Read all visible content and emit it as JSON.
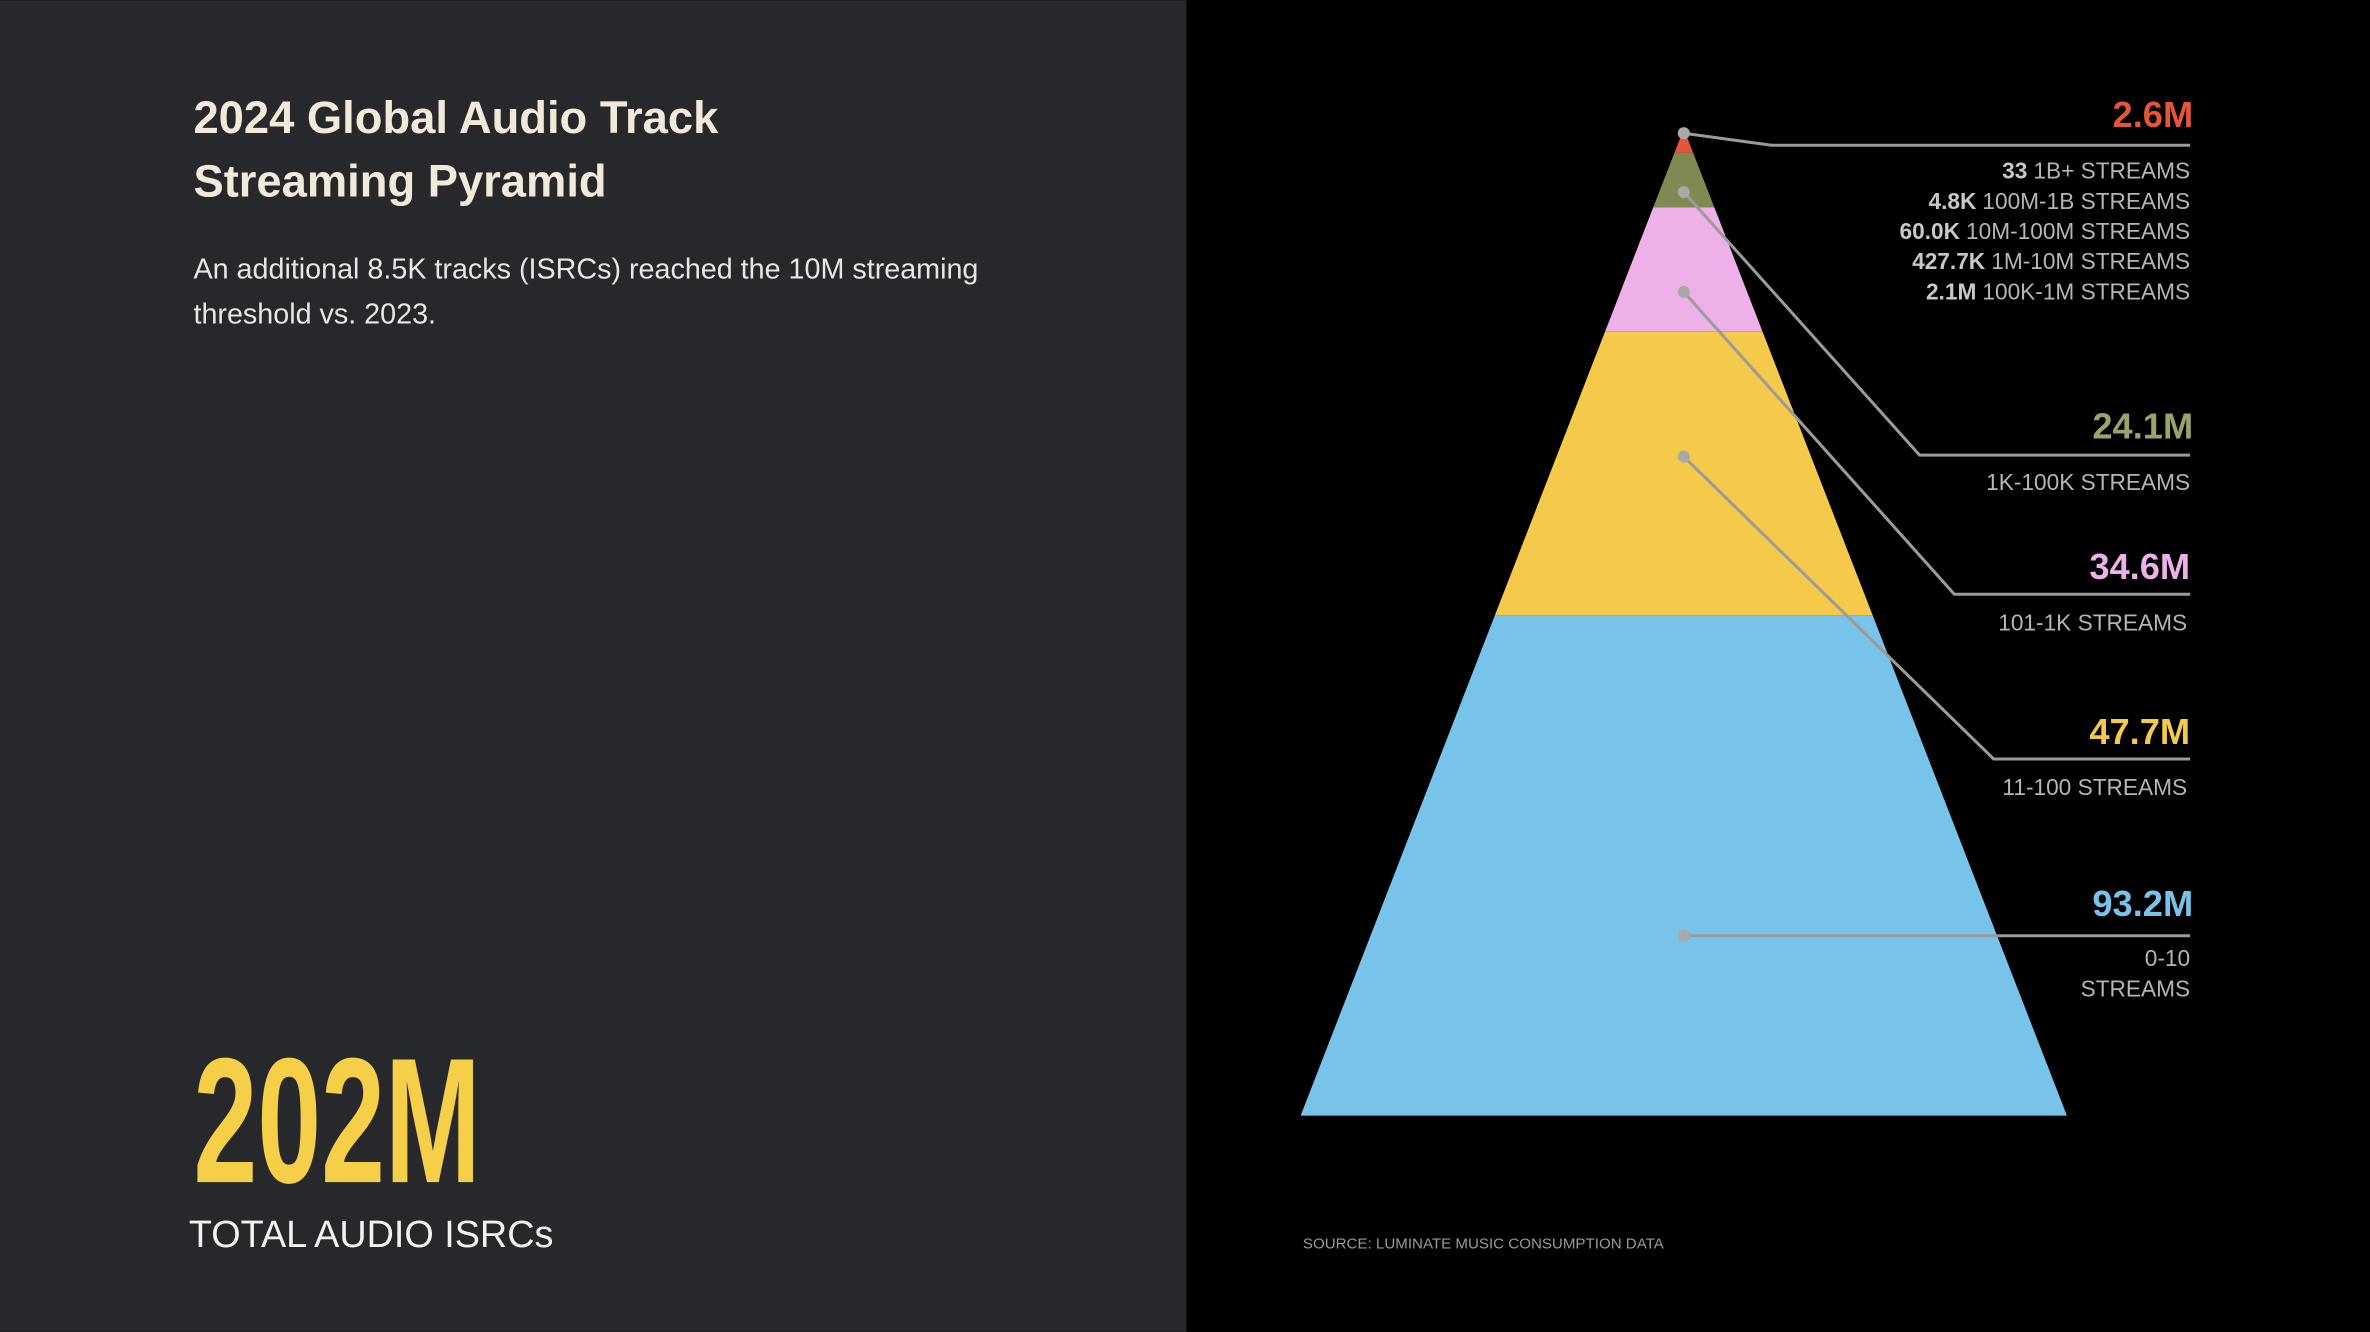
{
  "header": {
    "title": [
      "2024 Global Audio Track",
      "Streaming Pyramid"
    ],
    "subtitle": [
      "An additional 8.5K tracks (ISRCs) reached the 10M streaming",
      "threshold vs. 2023."
    ]
  },
  "total": {
    "value": "202M",
    "label": "TOTAL AUDIO ISRCs"
  },
  "tiers": [
    {
      "value": "2.6M"
    },
    {
      "value": "24.1M",
      "label": "1K-100K STREAMS"
    },
    {
      "value": "34.6M",
      "label": "101-1K STREAMS"
    },
    {
      "value": "47.7M",
      "label": "11-100 STREAMS"
    },
    {
      "value": "93.2M",
      "label": [
        "0-10",
        "STREAMS"
      ]
    }
  ],
  "top_breakdown": [
    {
      "count": "33",
      "label": "1B+ STREAMS"
    },
    {
      "count": "4.8K",
      "label": "100M-1B STREAMS"
    },
    {
      "count": "60.0K",
      "label": "10M-100M STREAMS"
    },
    {
      "count": "427.7K",
      "label": "1M-10M STREAMS"
    },
    {
      "count": "2.1M",
      "label": "100K-1M STREAMS"
    }
  ],
  "source": "SOURCE: LUMINATE MUSIC CONSUMPTION DATA"
}
